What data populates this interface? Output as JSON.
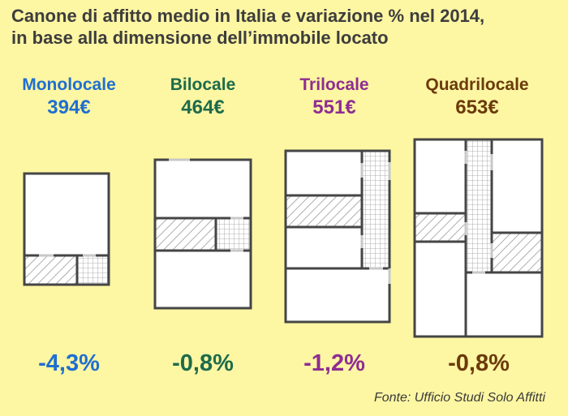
{
  "title": {
    "line1": "Canone di affitto medio in Italia e variazione % nel 2014,",
    "line2": "in base alla dimensione dell’immobile locato"
  },
  "types": [
    {
      "name": "Monolocale",
      "price": "394€",
      "change": "-4,3%",
      "color": "#1f6fd1"
    },
    {
      "name": "Bilocale",
      "price": "464€",
      "change": "-0,8%",
      "color": "#1d6b4b"
    },
    {
      "name": "Trilocale",
      "price": "551€",
      "change": "-1,2%",
      "color": "#8e2d93"
    },
    {
      "name": "Quadrilocale",
      "price": "653€",
      "change": "-0,8%",
      "color": "#6b3a0c"
    }
  ],
  "source": "Fonte: Ufficio Studi Solo Affitti"
}
